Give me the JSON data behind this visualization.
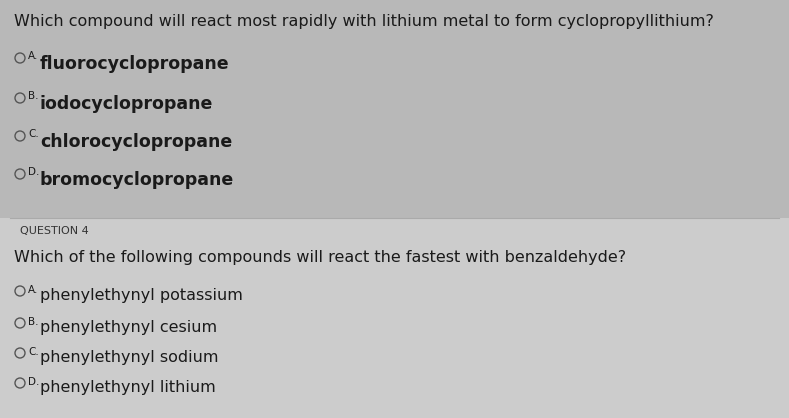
{
  "background_color": "#b8b8b8",
  "q4_box_color": "#d8d8d8",
  "q3": {
    "question": "Which compound will react most rapidly with lithium metal to form cyclopropyllithium?",
    "options": [
      {
        "label": "A.",
        "text": "fluorocyclopropane"
      },
      {
        "label": "B.",
        "text": "iodocyclopropane"
      },
      {
        "label": "C.",
        "text": "chlorocyclopropane"
      },
      {
        "label": "D.",
        "text": "bromocyclopropane"
      }
    ]
  },
  "q4": {
    "question_label": "QUESTION 4",
    "question": "Which of the following compounds will react the fastest with benzaldehyde?",
    "options": [
      {
        "label": "A.",
        "text": "phenylethynyl potassium"
      },
      {
        "label": "B.",
        "text": "phenylethynyl cesium"
      },
      {
        "label": "C.",
        "text": "phenylethynyl sodium"
      },
      {
        "label": "D.",
        "text": "phenylethynyl lithium"
      }
    ]
  },
  "text_color": "#1a1a1a",
  "circle_color": "#555555",
  "q_fontsize": 11.5,
  "opt_fontsize": 11.5,
  "lbl_fontsize": 7.5,
  "q4lbl_fontsize": 8.0
}
